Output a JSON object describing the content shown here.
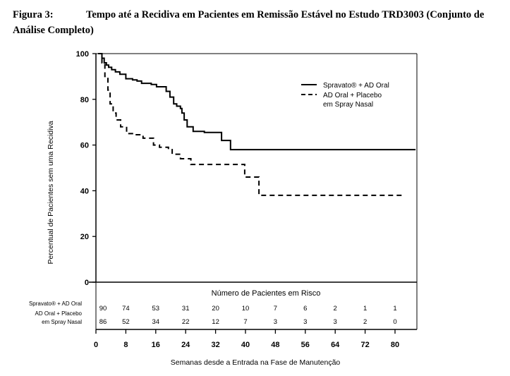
{
  "figure": {
    "label": "Figura 3:",
    "title": "Tempo até a Recidiva em Pacientes em Remissão Estável no Estudo TRD3003 (Conjunto de Análise Completo)"
  },
  "chart_data": {
    "type": "line",
    "title": "",
    "ylabel": "Percentual de Pacientes sem uma Recidiva",
    "xlabel": "Semanas desde a Entrada na Fase de Manutenção",
    "ylim": [
      0,
      100
    ],
    "xlim": [
      0,
      84
    ],
    "y_ticks": [
      0,
      20,
      40,
      60,
      80,
      100
    ],
    "x_ticks": [
      0,
      8,
      16,
      24,
      32,
      40,
      48,
      56,
      64,
      72,
      80
    ],
    "legend_position": "top-right",
    "grid": false,
    "series": [
      {
        "name": "Spravato® + AD Oral",
        "line_style": "solid",
        "color": "#000000",
        "x": [
          0.6,
          1.6,
          2.2,
          2.8,
          3.4,
          4.2,
          5.2,
          6.4,
          8.0,
          9.8,
          11.0,
          12.2,
          14.8,
          16.2,
          18.8,
          19.8,
          20.8,
          21.6,
          22.6,
          23.0,
          23.6,
          24.4,
          26.0,
          29.0,
          32.0,
          33.6,
          36.0,
          39.0,
          85.5
        ],
        "y": [
          100,
          98,
          96,
          95,
          94,
          93,
          92,
          91,
          89,
          88.5,
          88,
          87,
          86.5,
          85.5,
          83.5,
          81,
          78,
          77,
          76,
          74,
          71,
          68,
          66,
          65.5,
          65.5,
          62,
          58,
          58,
          58
        ]
      },
      {
        "name": "AD Oral + Placebo em Spray Nasal",
        "line_style": "dashed",
        "color": "#000000",
        "x": [
          0.6,
          1.6,
          2.4,
          3.2,
          3.8,
          4.6,
          5.4,
          6.6,
          8.2,
          10.2,
          12.6,
          15.4,
          17.0,
          19.4,
          20.4,
          22.6,
          25.4,
          31.6,
          39.8,
          43.6,
          46.4,
          82.0
        ],
        "y": [
          100,
          96,
          90,
          84,
          78,
          74,
          71,
          68,
          65,
          64.5,
          63,
          60,
          59,
          58,
          56,
          54,
          51.5,
          51.5,
          46,
          38,
          38,
          38
        ]
      }
    ],
    "risk_table": {
      "title": "Número de Pacientes em Risco",
      "rows": [
        {
          "label": "Spravato® + AD Oral",
          "values": [
            "90",
            "74",
            "53",
            "31",
            "20",
            "10",
            "7",
            "6",
            "2",
            "1",
            "1"
          ]
        },
        {
          "label": "AD Oral + Placebo em Spray Nasal",
          "values": [
            "86",
            "52",
            "34",
            "22",
            "12",
            "7",
            "3",
            "3",
            "3",
            "2",
            "0"
          ]
        }
      ]
    }
  }
}
